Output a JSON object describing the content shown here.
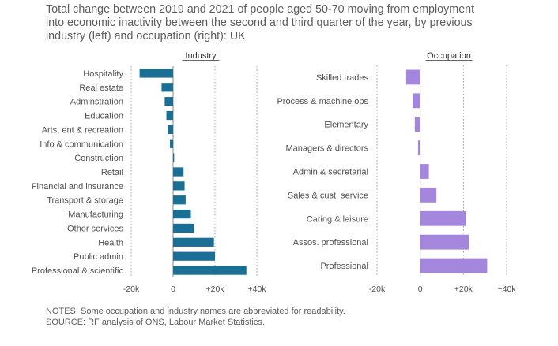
{
  "title": [
    "Total change between 2019 and 2021 of people aged 50-70 moving from employment",
    "into economic inactivity between the second and third quarter of the year, by previous",
    "industry (left) and occupation (right): UK"
  ],
  "chart_data": [
    {
      "type": "bar",
      "orientation": "horizontal",
      "title": "Industry",
      "color": "#1b6f94",
      "categories": [
        "Hospitality",
        "Real estate",
        "Adminstration",
        "Education",
        "Arts, ent & recreation",
        "Info & communication",
        "Construction",
        "Retail",
        "Financial and insurance",
        "Transport & storage",
        "Manufacturing",
        "Other services",
        "Health",
        "Public admin",
        "Professional & scientific"
      ],
      "values": [
        -16000,
        -5500,
        -4000,
        -3200,
        -2500,
        -1500,
        500,
        5000,
        5500,
        6000,
        8500,
        10000,
        19500,
        20000,
        35000
      ],
      "xlim": [
        -20000,
        40000
      ],
      "xticks": [
        -20000,
        0,
        20000,
        40000
      ],
      "xtick_labels": [
        "-20k",
        "0",
        "+20k",
        "+40k"
      ],
      "grid": true
    },
    {
      "type": "bar",
      "orientation": "horizontal",
      "title": "Occupation",
      "color": "#a486dc",
      "categories": [
        "Skilled trades",
        "Process & machine ops",
        "Elementary",
        "Managers & directors",
        "Admin & secretarial",
        "Sales & cust. service",
        "Caring & leisure",
        "Assos. professional",
        "Professional"
      ],
      "values": [
        -6500,
        -3500,
        -2500,
        -1000,
        4000,
        7500,
        21000,
        22500,
        31000
      ],
      "xlim": [
        -20000,
        40000
      ],
      "xticks": [
        -20000,
        0,
        20000,
        40000
      ],
      "xtick_labels": [
        "-20k",
        "0",
        "+20k",
        "+40k"
      ],
      "grid": true
    }
  ],
  "notes": [
    "NOTES: Some occupation and industry names are abbreviated for readability.",
    "SOURCE: RF analysis of ONS, Labour Market Statistics."
  ]
}
